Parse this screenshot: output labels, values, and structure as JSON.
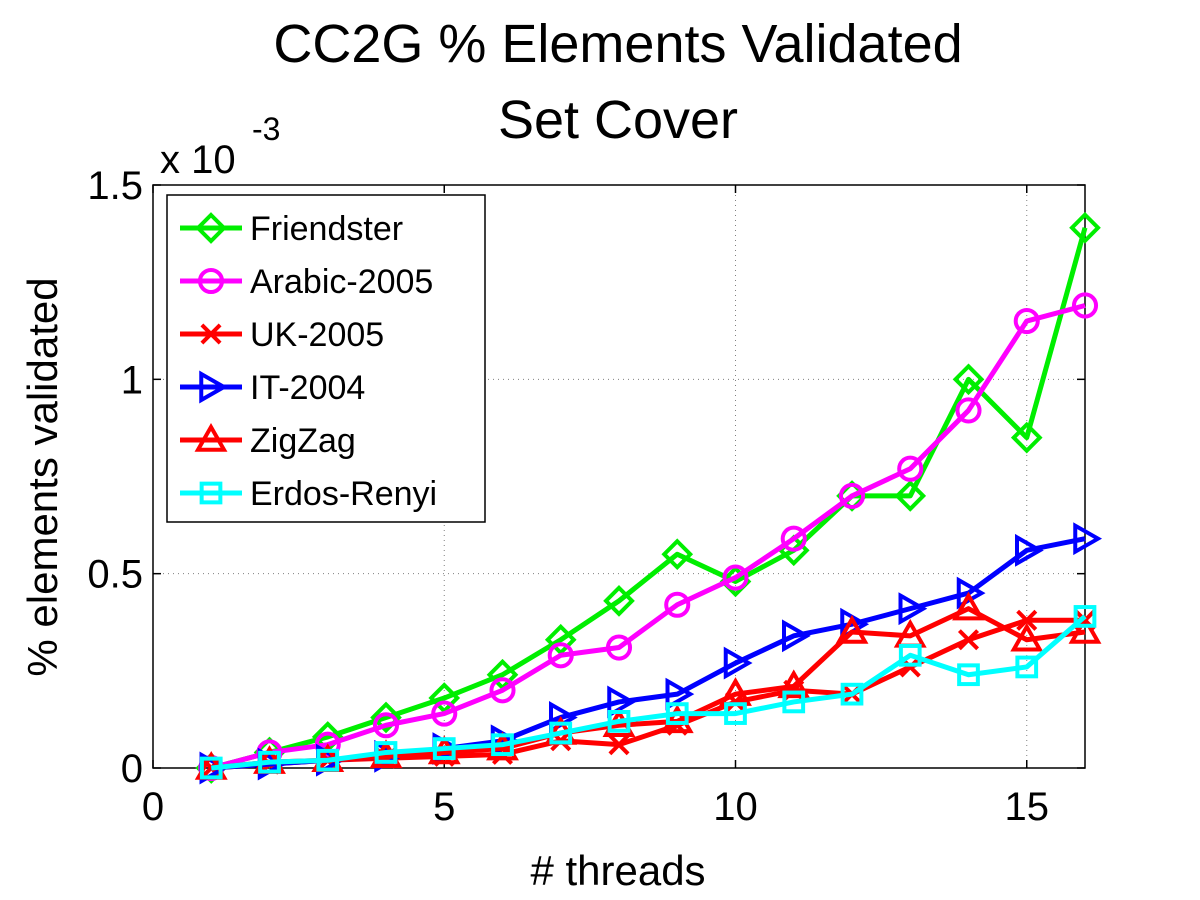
{
  "chart_data": {
    "type": "line",
    "title": [
      "CC2G % Elements Validated",
      "Set Cover"
    ],
    "xlabel": "# threads",
    "ylabel": "% elements validated",
    "y_scale_note": [
      "x 10",
      "-3"
    ],
    "xlim": [
      0,
      16
    ],
    "ylim": [
      0,
      1.5
    ],
    "xticks": [
      0,
      5,
      10,
      15
    ],
    "yticks": [
      0,
      0.5,
      1,
      1.5
    ],
    "ytick_labels": [
      "0",
      "0.5",
      "1",
      "1.5"
    ],
    "grid": true,
    "legend_position": "top-left",
    "x": [
      1,
      2,
      3,
      4,
      5,
      6,
      7,
      8,
      9,
      10,
      11,
      12,
      13,
      14,
      15,
      16
    ],
    "series": [
      {
        "name": "Friendster",
        "color": "#00ee00",
        "marker": "diamond",
        "values": [
          0.0,
          0.04,
          0.08,
          0.13,
          0.18,
          0.24,
          0.33,
          0.43,
          0.55,
          0.48,
          0.56,
          0.7,
          0.7,
          1.0,
          0.85,
          1.39
        ]
      },
      {
        "name": "Arabic-2005",
        "color": "#ff00ff",
        "marker": "circle",
        "values": [
          0.0,
          0.04,
          0.06,
          0.11,
          0.14,
          0.2,
          0.29,
          0.31,
          0.42,
          0.49,
          0.59,
          0.7,
          0.77,
          0.92,
          1.15,
          1.19
        ]
      },
      {
        "name": "UK-2005",
        "color": "#ff0000",
        "marker": "x",
        "values": [
          0.0,
          0.01,
          0.02,
          0.025,
          0.03,
          0.035,
          0.07,
          0.06,
          0.11,
          0.17,
          0.2,
          0.19,
          0.26,
          0.33,
          0.38,
          0.38
        ]
      },
      {
        "name": "IT-2004",
        "color": "#0000ff",
        "marker": "triangle-right",
        "values": [
          0.0,
          0.01,
          0.02,
          0.03,
          0.05,
          0.07,
          0.13,
          0.17,
          0.19,
          0.27,
          0.34,
          0.37,
          0.41,
          0.45,
          0.56,
          0.59
        ]
      },
      {
        "name": "ZigZag",
        "color": "#ff0000",
        "marker": "triangle-up",
        "values": [
          0.0,
          0.015,
          0.02,
          0.03,
          0.04,
          0.05,
          0.09,
          0.11,
          0.12,
          0.19,
          0.21,
          0.35,
          0.34,
          0.41,
          0.33,
          0.35
        ]
      },
      {
        "name": "Erdos-Renyi",
        "color": "#00ffff",
        "marker": "square",
        "values": [
          0.0,
          0.015,
          0.02,
          0.04,
          0.05,
          0.06,
          0.09,
          0.12,
          0.14,
          0.14,
          0.17,
          0.19,
          0.29,
          0.24,
          0.26,
          0.39
        ]
      }
    ]
  }
}
